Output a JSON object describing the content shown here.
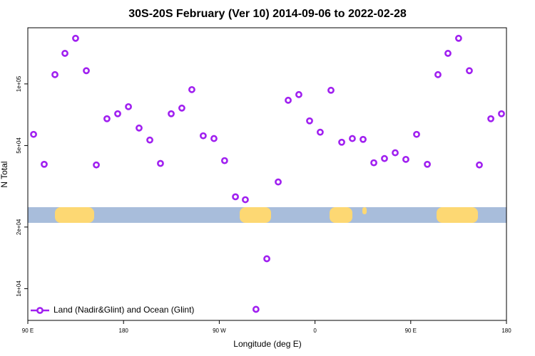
{
  "chart_data": {
    "type": "scatter",
    "title": "30S-20S February (Ver 10)   2014-09-06 to 2022-02-28",
    "xlabel": "Longitude (deg E)",
    "ylabel": "N Total",
    "xlim": [
      90,
      540
    ],
    "xticks": [
      {
        "value": 90,
        "label": "90 E"
      },
      180,
      {
        "value": 270,
        "label": "90 W"
      },
      {
        "value": 360,
        "label": "0"
      },
      {
        "value": 450,
        "label": "90 E"
      },
      {
        "value": 540,
        "label": "180"
      }
    ],
    "ylim": [
      7000,
      188000
    ],
    "yscale": "log",
    "yticks": [
      {
        "value": 10000,
        "label": "1e+04"
      },
      {
        "value": 20000,
        "label": "2e+04"
      },
      {
        "value": 50000,
        "label": "5e+04"
      },
      {
        "value": 100000,
        "label": "1e+05"
      }
    ],
    "legend": "lower left",
    "series": [
      {
        "name": "Land (Nadir&Glint) and Ocean (Glint)",
        "color": "#a020f0",
        "x": [
          95.4,
          105.4,
          115.5,
          124.9,
          134.9,
          145,
          154.4,
          164.4,
          174.5,
          184.6,
          194.6,
          204.7,
          214.7,
          224.8,
          234.8,
          244.2,
          254.9,
          265,
          275,
          285.2,
          294.5,
          304.5,
          314.7,
          325.4,
          334.8,
          344.8,
          354.9,
          364.9,
          375,
          385.1,
          395.1,
          405.2,
          415.3,
          425.3,
          435.4,
          445.4,
          455.5,
          465.6,
          475.6,
          485,
          495,
          505.1,
          514.5,
          525.3,
          535.3
        ],
        "values": [
          56700,
          40500,
          111000,
          141000,
          167000,
          116000,
          40200,
          67600,
          71500,
          77400,
          60900,
          53200,
          40900,
          71500,
          76200,
          93800,
          55800,
          54100,
          42200,
          28100,
          27200,
          7930,
          14000,
          33200,
          83200,
          88700,
          66000,
          58100,
          93100,
          51900,
          54100,
          53600,
          41200,
          43200,
          46100,
          42800,
          56700,
          40500,
          111000,
          141000,
          167000,
          116000,
          40200,
          67600,
          71500
        ]
      }
    ]
  }
}
